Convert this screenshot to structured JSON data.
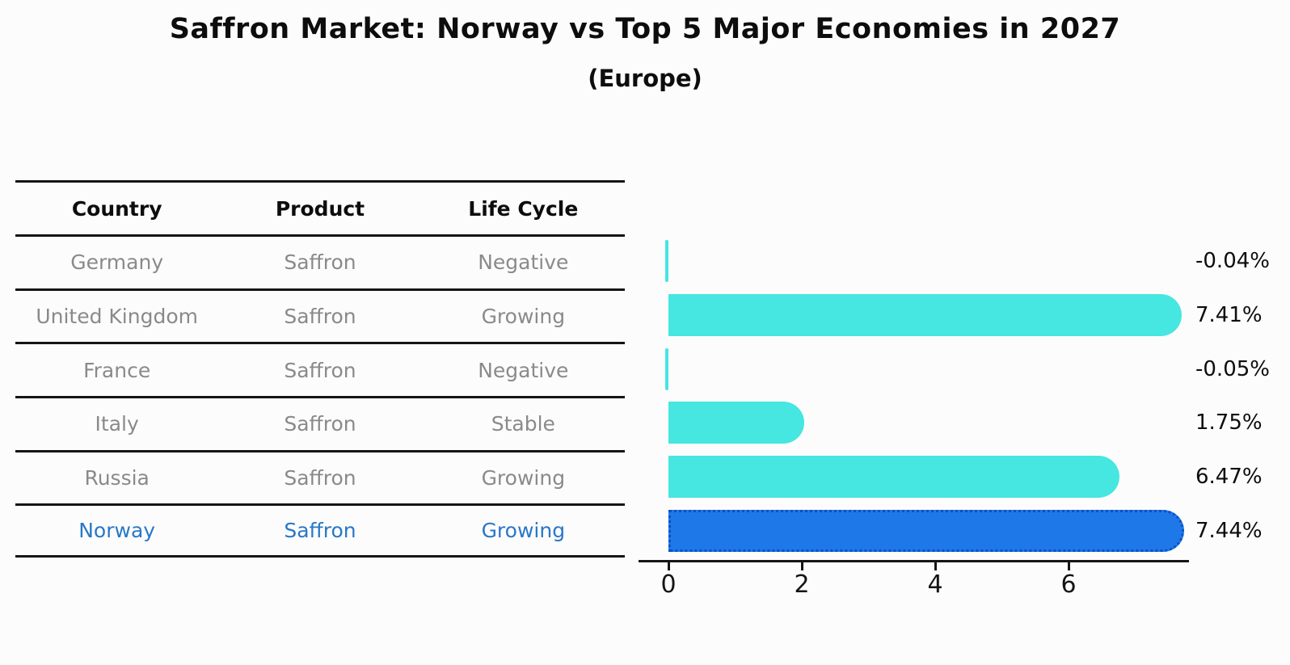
{
  "title": "Saffron Market: Norway vs Top 5 Major Economies in 2027",
  "subtitle": "(Europe)",
  "table": {
    "headers": [
      "Country",
      "Product",
      "Life Cycle"
    ],
    "rows": [
      {
        "country": "Germany",
        "product": "Saffron",
        "life_cycle": "Negative",
        "highlighted": false
      },
      {
        "country": "United Kingdom",
        "product": "Saffron",
        "life_cycle": "Growing",
        "highlighted": false
      },
      {
        "country": "France",
        "product": "Saffron",
        "life_cycle": "Negative",
        "highlighted": false
      },
      {
        "country": "Italy",
        "product": "Saffron",
        "life_cycle": "Stable",
        "highlighted": false
      },
      {
        "country": "Russia",
        "product": "Saffron",
        "life_cycle": "Growing",
        "highlighted": false
      },
      {
        "country": "Norway",
        "product": "Saffron",
        "life_cycle": "Growing",
        "highlighted": true
      }
    ]
  },
  "chart_data": {
    "type": "bar",
    "orientation": "horizontal",
    "title": "Saffron Market: Norway vs Top 5 Major Economies in 2027",
    "subtitle": "(Europe)",
    "categories": [
      "Germany",
      "United Kingdom",
      "France",
      "Italy",
      "Russia",
      "Norway"
    ],
    "values": [
      -0.04,
      7.41,
      -0.05,
      1.75,
      6.47,
      7.44
    ],
    "value_labels": [
      "-0.04%",
      "7.41%",
      "-0.05%",
      "1.75%",
      "6.47%",
      "7.44%"
    ],
    "x_ticks": [
      0,
      2,
      4,
      6
    ],
    "xlim": [
      -0.45,
      7.8
    ],
    "grid": false,
    "legend": "none",
    "bar_color": "#46e6e1",
    "highlight_index": 5,
    "highlight_color": "#1f78e8",
    "highlight_border_color": "#0b50c8",
    "row_text_color": "#8a8a8a",
    "highlight_text_color": "#2878c8"
  }
}
